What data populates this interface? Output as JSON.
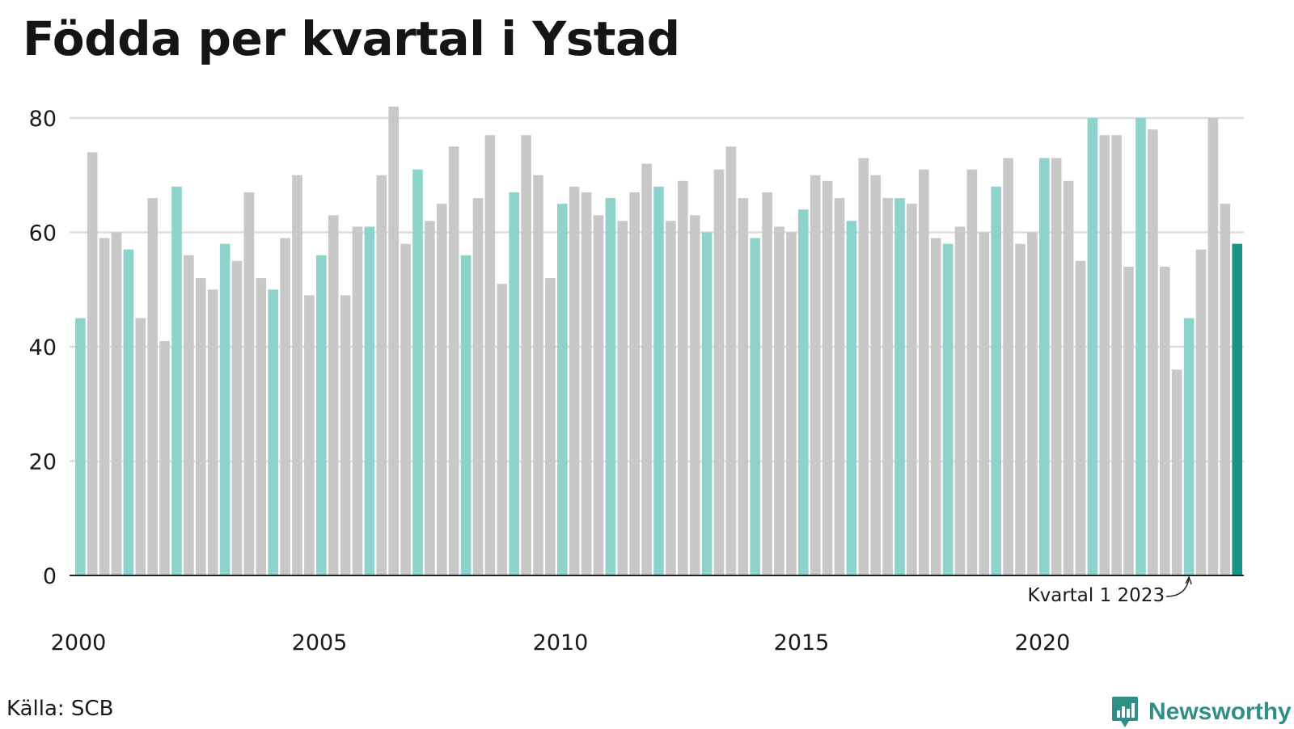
{
  "chart_data": {
    "type": "bar",
    "title": "Födda per kvartal i Ystad",
    "xlabel": "",
    "ylabel": "",
    "ylim": [
      0,
      80
    ],
    "yticks": [
      0,
      20,
      40,
      60,
      80
    ],
    "xtick_labels": [
      "2000",
      "2005",
      "2010",
      "2015",
      "2020"
    ],
    "start_year": 2000,
    "grid": true,
    "legend": "none",
    "colors": {
      "q1": "#8dd3cc",
      "other": "#c8c8c8",
      "latest": "#1a9486",
      "axis": "#222222",
      "grid": "#dddddd"
    },
    "annotation": {
      "text": "Kvartal 1 2023",
      "year": 2023,
      "quarter": 1
    },
    "values": [
      45,
      74,
      59,
      60,
      57,
      45,
      66,
      41,
      68,
      56,
      52,
      50,
      58,
      55,
      67,
      52,
      50,
      59,
      70,
      49,
      56,
      63,
      49,
      61,
      61,
      70,
      82,
      58,
      71,
      62,
      65,
      75,
      56,
      66,
      77,
      51,
      67,
      77,
      70,
      52,
      65,
      68,
      67,
      63,
      66,
      62,
      67,
      72,
      68,
      62,
      69,
      63,
      60,
      71,
      75,
      66,
      59,
      67,
      61,
      60,
      64,
      70,
      69,
      66,
      62,
      73,
      70,
      66,
      66,
      65,
      71,
      59,
      58,
      61,
      71,
      60,
      68,
      73,
      58,
      60,
      73,
      73,
      69,
      55,
      80,
      77,
      77,
      54,
      80,
      78,
      54,
      36,
      45,
      57,
      80,
      65,
      58
    ]
  },
  "footer": {
    "source": "Källa: SCB",
    "brand": "Newsworthy",
    "brand_color": "#2f8f84"
  }
}
